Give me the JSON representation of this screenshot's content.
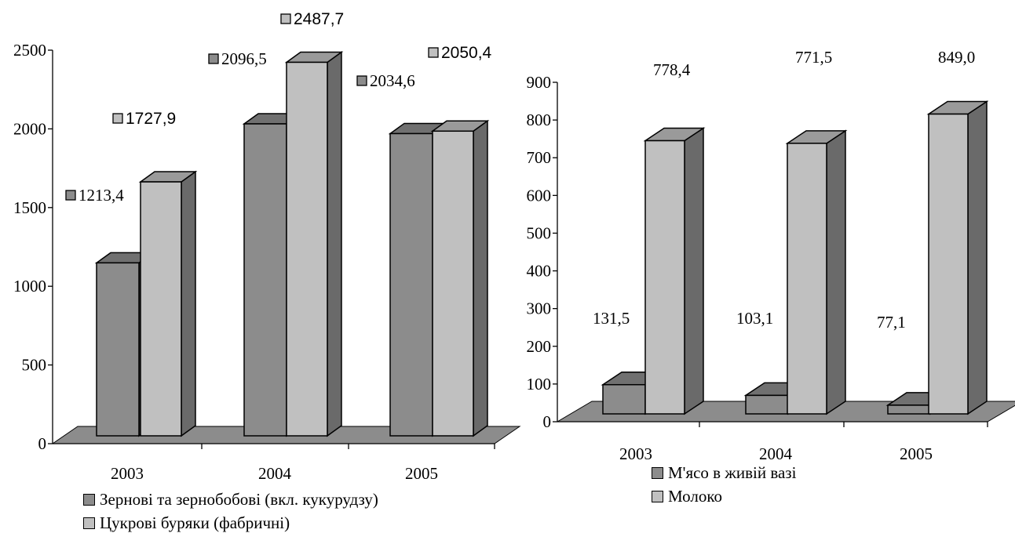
{
  "colors": {
    "dark": "#8c8c8c",
    "light": "#c0c0c0",
    "floor": "#8c8c8c"
  },
  "chart_data": [
    {
      "type": "bar",
      "categories": [
        "2003",
        "2004",
        "2005"
      ],
      "ylim": [
        0,
        2500
      ],
      "yticks": [
        "0",
        "500",
        "1000",
        "1500",
        "2000",
        "2500"
      ],
      "series": [
        {
          "name": "Зернові та зернобобові (вкл. кукурудзу)",
          "color": "dark",
          "values": [
            1213.4,
            2096.5,
            2034.6
          ],
          "labels": [
            "1213,4",
            "2096,5",
            "2034,6"
          ]
        },
        {
          "name": "Цукрові буряки (фабричні)",
          "color": "light",
          "values": [
            1727.9,
            2487.7,
            2050.4
          ],
          "labels": [
            "1727,9",
            "2487,7",
            "2050,4"
          ]
        }
      ]
    },
    {
      "type": "bar",
      "categories": [
        "2003",
        "2004",
        "2005"
      ],
      "ylim": [
        0,
        900
      ],
      "yticks": [
        "0",
        "100",
        "200",
        "300",
        "400",
        "500",
        "600",
        "700",
        "800",
        "900"
      ],
      "series": [
        {
          "name": "М'ясо в живій вазі",
          "color": "dark",
          "values": [
            131.5,
            103.1,
            77.1
          ],
          "labels": [
            "131,5",
            "103,1",
            "77,1"
          ]
        },
        {
          "name": "Молоко",
          "color": "light",
          "values": [
            778.4,
            771.5,
            849.0
          ],
          "labels": [
            "778,4",
            "771,5",
            "849,0"
          ]
        }
      ]
    }
  ]
}
